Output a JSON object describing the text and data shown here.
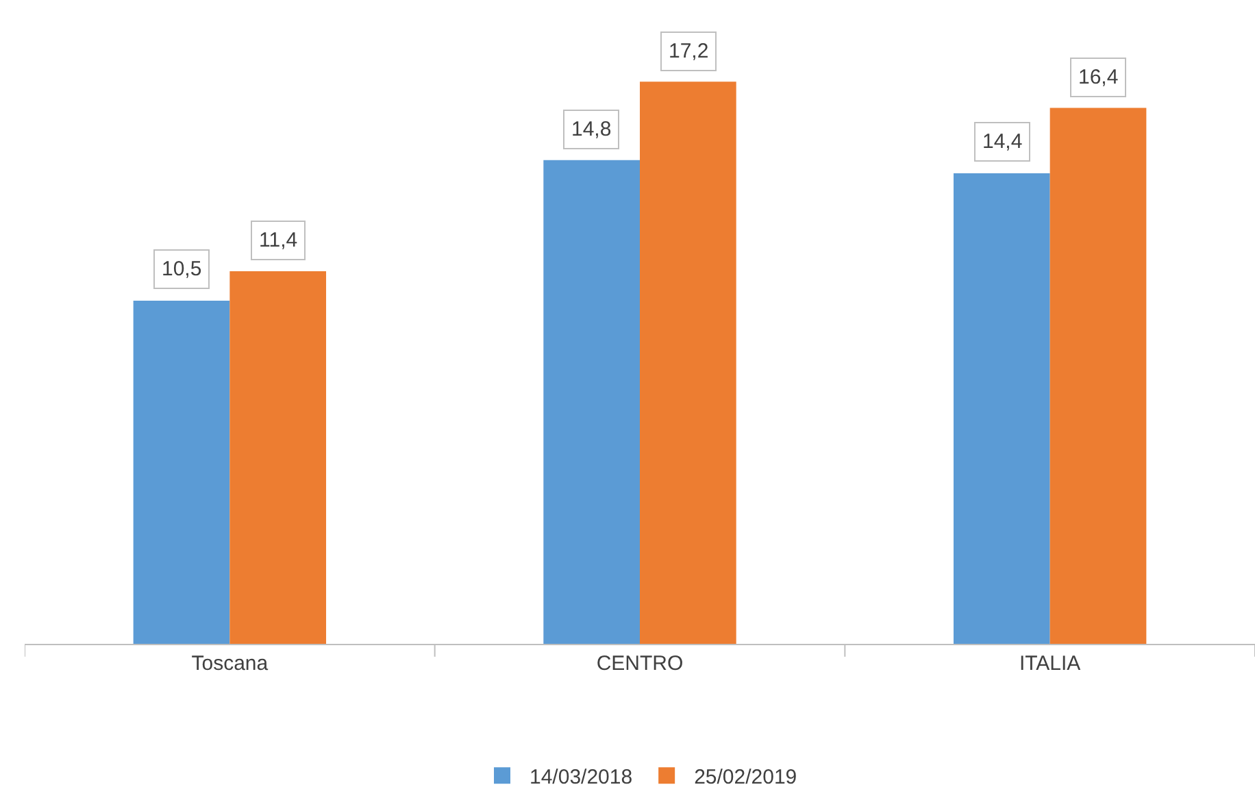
{
  "chart_data": {
    "type": "bar",
    "categories": [
      "Toscana",
      "CENTRO",
      "ITALIA"
    ],
    "series": [
      {
        "name": "14/03/2018",
        "color": "#5b9bd5",
        "values": [
          10.5,
          14.8,
          14.4
        ],
        "value_labels": [
          "10,5",
          "14,8",
          "14,4"
        ]
      },
      {
        "name": "25/02/2019",
        "color": "#ed7d31",
        "values": [
          11.4,
          17.2,
          16.4
        ],
        "value_labels": [
          "11,4",
          "17,2",
          "16,4"
        ]
      }
    ],
    "ylim": [
      0,
      19.7
    ],
    "tick_labels": "x",
    "legend": "bottom"
  }
}
